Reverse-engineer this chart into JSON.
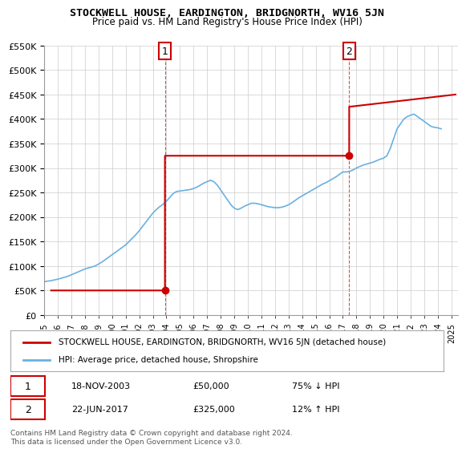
{
  "title": "STOCKWELL HOUSE, EARDINGTON, BRIDGNORTH, WV16 5JN",
  "subtitle": "Price paid vs. HM Land Registry's House Price Index (HPI)",
  "ylim": [
    0,
    550000
  ],
  "yticks": [
    0,
    50000,
    100000,
    150000,
    200000,
    250000,
    300000,
    350000,
    400000,
    450000,
    500000,
    550000
  ],
  "ytick_labels": [
    "£0",
    "£50K",
    "£100K",
    "£150K",
    "£200K",
    "£250K",
    "£300K",
    "£350K",
    "£400K",
    "£450K",
    "£500K",
    "£550K"
  ],
  "xlim_start": 1995.5,
  "xlim_end": 2025.5,
  "sale1_x": 2003.89,
  "sale1_y": 50000,
  "sale1_label": "1",
  "sale1_date": "18-NOV-2003",
  "sale1_price": "£50,000",
  "sale1_hpi": "75% ↓ HPI",
  "sale2_x": 2017.47,
  "sale2_y": 325000,
  "sale2_label": "2",
  "sale2_date": "22-JUN-2017",
  "sale2_price": "£325,000",
  "sale2_hpi": "12% ↑ HPI",
  "hpi_color": "#6ab0e0",
  "sale_color": "#cc0000",
  "grid_color": "#cccccc",
  "bg_color": "#ffffff",
  "legend_label_sale": "STOCKWELL HOUSE, EARDINGTON, BRIDGNORTH, WV16 5JN (detached house)",
  "legend_label_hpi": "HPI: Average price, detached house, Shropshire",
  "footer": "Contains HM Land Registry data © Crown copyright and database right 2024.\nThis data is licensed under the Open Government Licence v3.0.",
  "hpi_years": [
    1995,
    1995.25,
    1995.5,
    1995.75,
    1996,
    1996.25,
    1996.5,
    1996.75,
    1997,
    1997.25,
    1997.5,
    1997.75,
    1998,
    1998.25,
    1998.5,
    1998.75,
    1999,
    1999.25,
    1999.5,
    1999.75,
    2000,
    2000.25,
    2000.5,
    2000.75,
    2001,
    2001.25,
    2001.5,
    2001.75,
    2002,
    2002.25,
    2002.5,
    2002.75,
    2003,
    2003.25,
    2003.5,
    2003.75,
    2004,
    2004.25,
    2004.5,
    2004.75,
    2005,
    2005.25,
    2005.5,
    2005.75,
    2006,
    2006.25,
    2006.5,
    2006.75,
    2007,
    2007.25,
    2007.5,
    2007.75,
    2008,
    2008.25,
    2008.5,
    2008.75,
    2009,
    2009.25,
    2009.5,
    2009.75,
    2010,
    2010.25,
    2010.5,
    2010.75,
    2011,
    2011.25,
    2011.5,
    2011.75,
    2012,
    2012.25,
    2012.5,
    2012.75,
    2013,
    2013.25,
    2013.5,
    2013.75,
    2014,
    2014.25,
    2014.5,
    2014.75,
    2015,
    2015.25,
    2015.5,
    2015.75,
    2016,
    2016.25,
    2016.5,
    2016.75,
    2017,
    2017.25,
    2017.5,
    2017.75,
    2018,
    2018.25,
    2018.5,
    2018.75,
    2019,
    2019.25,
    2019.5,
    2019.75,
    2020,
    2020.25,
    2020.5,
    2020.75,
    2021,
    2021.25,
    2021.5,
    2021.75,
    2022,
    2022.25,
    2022.5,
    2022.75,
    2023,
    2023.25,
    2023.5,
    2023.75,
    2024,
    2024.25
  ],
  "hpi_values": [
    68000,
    69000,
    70000,
    71500,
    73000,
    75000,
    77000,
    79000,
    82000,
    85000,
    88000,
    91000,
    94000,
    96000,
    98000,
    100000,
    104000,
    108000,
    113000,
    118000,
    123000,
    128000,
    133000,
    138000,
    143000,
    150000,
    157000,
    164000,
    172000,
    181000,
    190000,
    199000,
    208000,
    215000,
    221000,
    226000,
    232000,
    240000,
    248000,
    252000,
    253000,
    254000,
    255000,
    256000,
    258000,
    261000,
    265000,
    269000,
    272000,
    275000,
    272000,
    265000,
    255000,
    245000,
    235000,
    225000,
    218000,
    215000,
    218000,
    222000,
    225000,
    228000,
    228000,
    227000,
    225000,
    223000,
    221000,
    220000,
    219000,
    219000,
    220000,
    222000,
    225000,
    229000,
    234000,
    239000,
    243000,
    247000,
    251000,
    255000,
    259000,
    263000,
    267000,
    270000,
    274000,
    278000,
    282000,
    287000,
    292000,
    292000,
    293000,
    296000,
    300000,
    303000,
    306000,
    308000,
    310000,
    312000,
    315000,
    318000,
    320000,
    325000,
    340000,
    360000,
    380000,
    390000,
    400000,
    405000,
    408000,
    410000,
    405000,
    400000,
    395000,
    390000,
    385000,
    383000,
    382000,
    380000
  ],
  "sale_line_x": [
    1995.5,
    2003.89,
    2003.89,
    2017.47,
    2017.47,
    2025.3
  ],
  "sale_line_y": [
    50000,
    50000,
    325000,
    325000,
    425000,
    450000
  ]
}
